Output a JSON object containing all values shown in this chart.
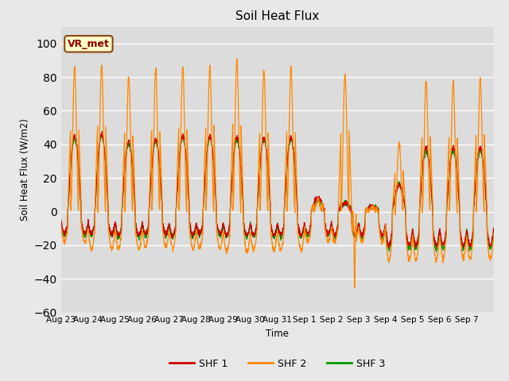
{
  "title": "Soil Heat Flux",
  "ylabel": "Soil Heat Flux (W/m2)",
  "xlabel": "Time",
  "ylim": [
    -60,
    110
  ],
  "yticks": [
    -60,
    -40,
    -20,
    0,
    20,
    40,
    60,
    80,
    100
  ],
  "colors": {
    "SHF 1": "#cc0000",
    "SHF 2": "#ff8800",
    "SHF 3": "#009900"
  },
  "bg_color": "#dcdcdc",
  "fig_color": "#e8e8e8",
  "annotation": "VR_met",
  "legend_labels": [
    "SHF 1",
    "SHF 2",
    "SHF 3"
  ],
  "x_tick_labels": [
    "Aug 23",
    "Aug 24",
    "Aug 25",
    "Aug 26",
    "Aug 27",
    "Aug 28",
    "Aug 29",
    "Aug 30",
    "Aug 31",
    "Sep 1",
    "Sep 2",
    "Sep 3",
    "Sep 4",
    "Sep 5",
    "Sep 6",
    "Sep 7"
  ],
  "n_days": 16,
  "pts_per_day": 144
}
